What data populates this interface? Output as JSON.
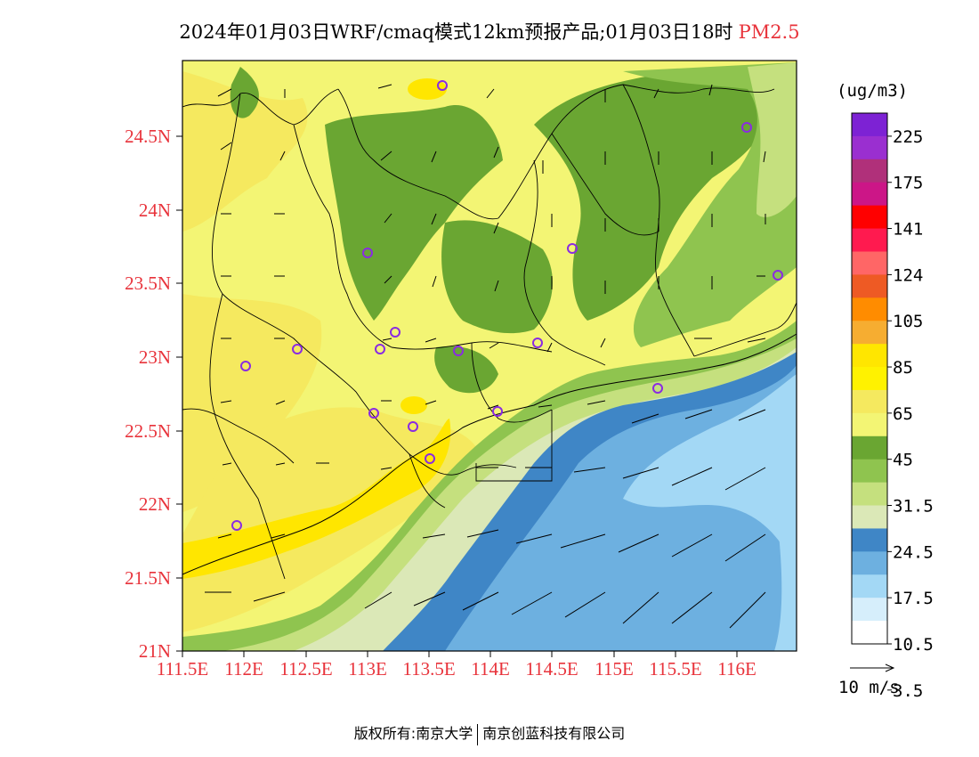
{
  "title": {
    "text": "2024年01月03日WRF/cmaq模式12km预报产品;01月03日18时",
    "product": "PM2.5"
  },
  "colorbar": {
    "unit": "(ug/m3)",
    "labels": [
      "225",
      "175",
      "141",
      "124",
      "105",
      "85",
      "65",
      "45",
      "31.5",
      "24.5",
      "17.5",
      "10.5",
      "3.5"
    ],
    "colors": [
      "#7d22d4",
      "#9a2fd0",
      "#b0307a",
      "#cc1687",
      "#ff0000",
      "#ff1a4f",
      "#ff6666",
      "#ee5a24",
      "#ff8c00",
      "#f6ad31",
      "#ffe600",
      "#fff200",
      "#f5e95f",
      "#f3f574",
      "#6aa632",
      "#8fc44f",
      "#c5e07e",
      "#dbe8b7",
      "#3f86c6",
      "#6db0e0",
      "#a3d8f5",
      "#d6eefb",
      "#ffffff"
    ]
  },
  "wind_scale": {
    "label": "10 m/s"
  },
  "map": {
    "lat_labels": [
      "24.5N",
      "24N",
      "23.5N",
      "23N",
      "22.5N",
      "22N",
      "21.5N",
      "21N"
    ],
    "lon_labels": [
      "111.5E",
      "112E",
      "112.5E",
      "113E",
      "113.5E",
      "114E",
      "114.5E",
      "115E",
      "115.5E",
      "116E"
    ]
  },
  "footer": {
    "copyright_prefix": "版权所有:",
    "org1": "南京大学",
    "org2": "南京创蓝科技有限公司"
  }
}
